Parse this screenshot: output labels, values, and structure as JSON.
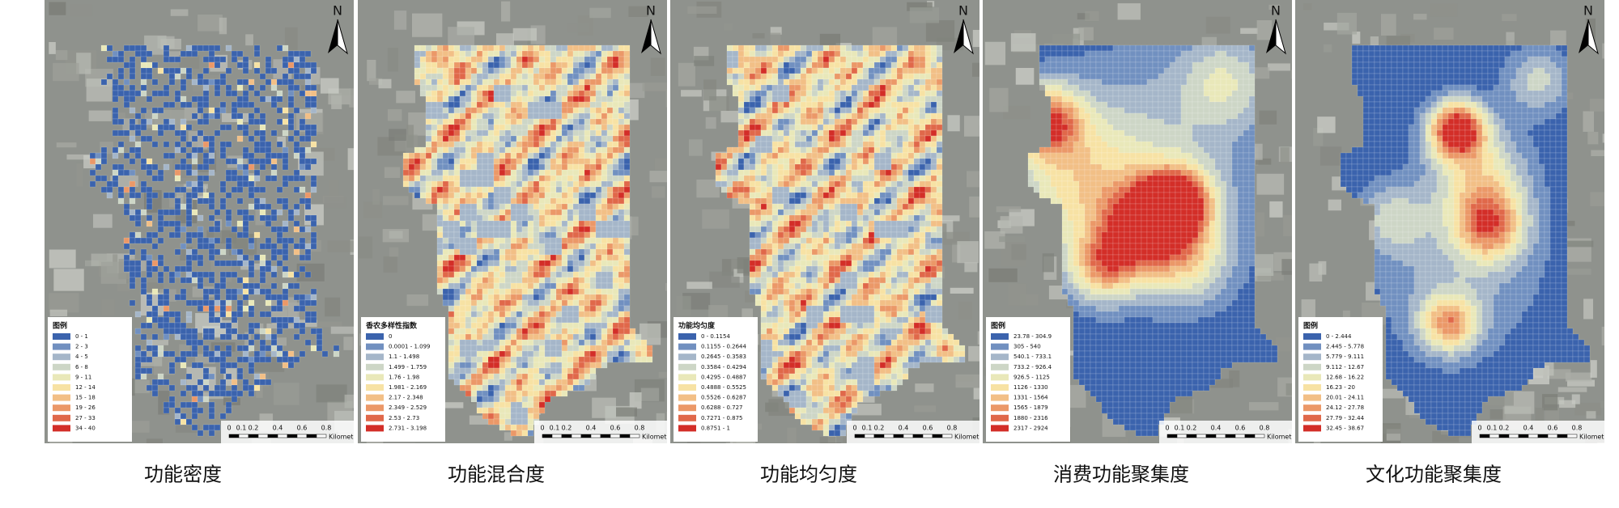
{
  "north": "N",
  "scale": {
    "ticks": [
      "0",
      "0.1",
      "0.2",
      "0.4",
      "0.6",
      "0.8"
    ],
    "unit": "Kilometers"
  },
  "legend_colors": [
    "#3b63ad",
    "#7190c0",
    "#a5b6c9",
    "#cdd6c6",
    "#e9e8b9",
    "#f7e2a4",
    "#f2bf86",
    "#eb9868",
    "#e0684a",
    "#d32e28"
  ],
  "panels": [
    {
      "caption": "功能密度",
      "legend": {
        "title": "图例",
        "items": [
          "0 - 1",
          "2 - 3",
          "4 - 5",
          "6 - 8",
          "9 - 11",
          "12 - 14",
          "15 - 18",
          "19 - 26",
          "27 - 33",
          "34 - 40"
        ]
      }
    },
    {
      "caption": "功能混合度",
      "legend": {
        "title": "香农多样性指数",
        "items": [
          "0",
          "0.0001 - 1.099",
          "1.1 - 1.498",
          "1.499 - 1.759",
          "1.76 - 1.98",
          "1.981 - 2.169",
          "2.17 - 2.348",
          "2.349 - 2.529",
          "2.53 - 2.73",
          "2.731 - 3.198"
        ]
      }
    },
    {
      "caption": "功能均匀度",
      "legend": {
        "title": "功能均匀度",
        "items": [
          "0 - 0.1154",
          "0.1155 - 0.2644",
          "0.2645 - 0.3583",
          "0.3584 - 0.4294",
          "0.4295 - 0.4887",
          "0.4888 - 0.5525",
          "0.5526 - 0.6287",
          "0.6288 - 0.727",
          "0.7271 - 0.875",
          "0.8751 - 1"
        ]
      }
    },
    {
      "caption": "消费功能聚集度",
      "legend": {
        "title": "图例",
        "items": [
          "23.78 - 304.9",
          "305 - 540",
          "540.1 - 733.1",
          "733.2 - 926.4",
          "926.5 - 1125",
          "1126 - 1330",
          "1331 - 1564",
          "1565 - 1879",
          "1880 - 2316",
          "2317 - 2924"
        ]
      }
    },
    {
      "caption": "文化功能聚集度",
      "legend": {
        "title": "图例",
        "items": [
          "0 - 2.444",
          "2.445 - 5.778",
          "5.779 - 9.111",
          "9.112 - 12.67",
          "12.68 - 16.22",
          "16.23 - 20",
          "20.01 - 24.11",
          "24.12 - 27.78",
          "27.79 - 32.44",
          "32.45 - 38.67"
        ]
      }
    }
  ]
}
